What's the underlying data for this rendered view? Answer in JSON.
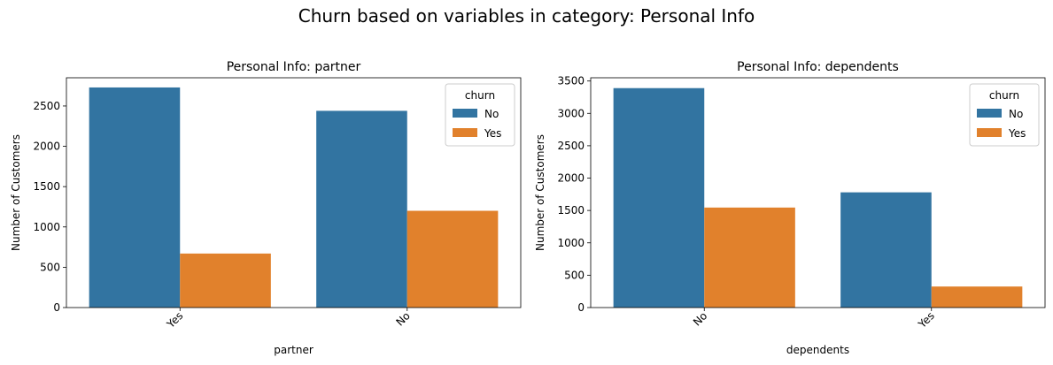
{
  "figure": {
    "title": "Churn based on variables in category: Personal Info"
  },
  "colors": {
    "No": "#3274a1",
    "Yes": "#e1812c"
  },
  "chart_data": [
    {
      "type": "bar",
      "title": "Personal Info: partner",
      "xlabel": "partner",
      "ylabel": "Number of Customers",
      "categories": [
        "Yes",
        "No"
      ],
      "ylim": [
        0,
        2850
      ],
      "yticks": [
        0,
        500,
        1000,
        1500,
        2000,
        2500
      ],
      "legend": {
        "title": "churn",
        "placement": "top-right"
      },
      "grid": false,
      "series": [
        {
          "name": "No",
          "values": [
            2730,
            2440
          ]
        },
        {
          "name": "Yes",
          "values": [
            670,
            1200
          ]
        }
      ]
    },
    {
      "type": "bar",
      "title": "Personal Info: dependents",
      "xlabel": "dependents",
      "ylabel": "Number of Customers",
      "categories": [
        "No",
        "Yes"
      ],
      "ylim": [
        0,
        3550
      ],
      "yticks": [
        0,
        500,
        1000,
        1500,
        2000,
        2500,
        3000,
        3500
      ],
      "legend": {
        "title": "churn",
        "placement": "top-right"
      },
      "grid": false,
      "series": [
        {
          "name": "No",
          "values": [
            3390,
            1780
          ]
        },
        {
          "name": "Yes",
          "values": [
            1545,
            325
          ]
        }
      ]
    }
  ]
}
